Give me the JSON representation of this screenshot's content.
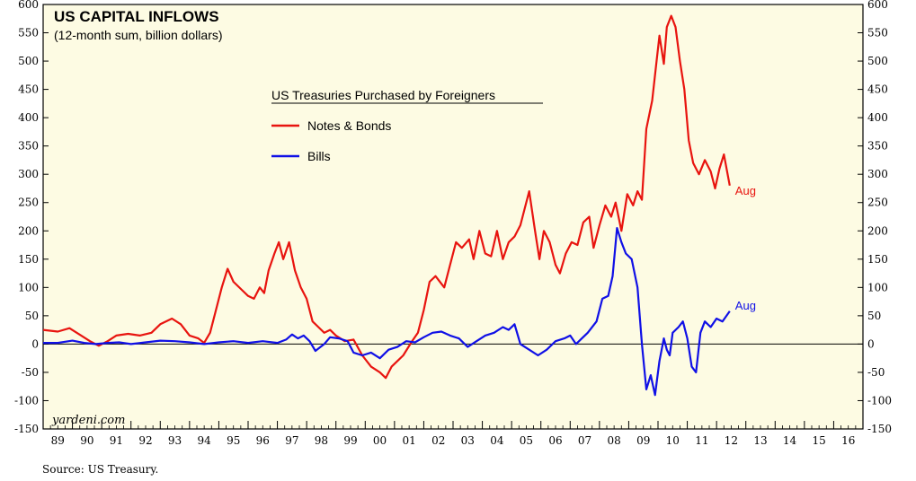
{
  "chart_data": {
    "type": "line",
    "title": "US CAPITAL INFLOWS",
    "subtitle": "(12-month sum, billion dollars)",
    "legend_title": "US Treasuries Purchased by Foreigners",
    "source": "Source: US Treasury.",
    "brand": "yardeni.com",
    "ylim": [
      -150,
      600
    ],
    "yticks": [
      -150,
      -100,
      -50,
      0,
      50,
      100,
      150,
      200,
      250,
      300,
      350,
      400,
      450,
      500,
      550,
      600
    ],
    "xlim": [
      1989,
      2017
    ],
    "x_tick_labels": [
      "89",
      "90",
      "91",
      "92",
      "93",
      "94",
      "95",
      "96",
      "97",
      "98",
      "99",
      "00",
      "01",
      "02",
      "03",
      "04",
      "05",
      "06",
      "07",
      "08",
      "09",
      "10",
      "11",
      "12",
      "13",
      "14",
      "15",
      "16"
    ],
    "grid": false,
    "legend_position": "top-center",
    "series": [
      {
        "name": "Notes & Bonds",
        "color": "#e8140f",
        "end_label": "Aug",
        "points": [
          [
            1989.0,
            25
          ],
          [
            1989.5,
            22
          ],
          [
            1989.9,
            28
          ],
          [
            1990.3,
            15
          ],
          [
            1990.6,
            5
          ],
          [
            1990.9,
            -3
          ],
          [
            1991.2,
            5
          ],
          [
            1991.5,
            15
          ],
          [
            1991.9,
            18
          ],
          [
            1992.3,
            15
          ],
          [
            1992.7,
            20
          ],
          [
            1993.0,
            35
          ],
          [
            1993.4,
            45
          ],
          [
            1993.7,
            35
          ],
          [
            1994.0,
            15
          ],
          [
            1994.3,
            10
          ],
          [
            1994.5,
            2
          ],
          [
            1994.7,
            20
          ],
          [
            1994.9,
            60
          ],
          [
            1995.1,
            100
          ],
          [
            1995.3,
            133
          ],
          [
            1995.5,
            110
          ],
          [
            1995.8,
            95
          ],
          [
            1996.0,
            85
          ],
          [
            1996.2,
            80
          ],
          [
            1996.4,
            100
          ],
          [
            1996.55,
            90
          ],
          [
            1996.7,
            130
          ],
          [
            1996.9,
            160
          ],
          [
            1997.05,
            180
          ],
          [
            1997.2,
            150
          ],
          [
            1997.4,
            180
          ],
          [
            1997.6,
            130
          ],
          [
            1997.8,
            100
          ],
          [
            1998.0,
            80
          ],
          [
            1998.2,
            40
          ],
          [
            1998.4,
            30
          ],
          [
            1998.6,
            20
          ],
          [
            1998.8,
            25
          ],
          [
            1999.0,
            15
          ],
          [
            1999.3,
            5
          ],
          [
            1999.6,
            8
          ],
          [
            1999.9,
            -20
          ],
          [
            2000.2,
            -40
          ],
          [
            2000.5,
            -50
          ],
          [
            2000.7,
            -60
          ],
          [
            2000.9,
            -40
          ],
          [
            2001.1,
            -30
          ],
          [
            2001.3,
            -20
          ],
          [
            2001.6,
            5
          ],
          [
            2001.8,
            20
          ],
          [
            2002.0,
            60
          ],
          [
            2002.2,
            110
          ],
          [
            2002.4,
            120
          ],
          [
            2002.7,
            100
          ],
          [
            2002.9,
            140
          ],
          [
            2003.1,
            180
          ],
          [
            2003.3,
            170
          ],
          [
            2003.55,
            185
          ],
          [
            2003.7,
            150
          ],
          [
            2003.9,
            200
          ],
          [
            2004.1,
            160
          ],
          [
            2004.3,
            155
          ],
          [
            2004.5,
            200
          ],
          [
            2004.7,
            150
          ],
          [
            2004.9,
            180
          ],
          [
            2005.1,
            190
          ],
          [
            2005.3,
            210
          ],
          [
            2005.45,
            240
          ],
          [
            2005.6,
            270
          ],
          [
            2005.8,
            200
          ],
          [
            2005.95,
            150
          ],
          [
            2006.1,
            200
          ],
          [
            2006.3,
            180
          ],
          [
            2006.5,
            140
          ],
          [
            2006.65,
            125
          ],
          [
            2006.85,
            160
          ],
          [
            2007.05,
            180
          ],
          [
            2007.25,
            175
          ],
          [
            2007.45,
            215
          ],
          [
            2007.65,
            225
          ],
          [
            2007.8,
            170
          ],
          [
            2008.0,
            210
          ],
          [
            2008.2,
            245
          ],
          [
            2008.4,
            225
          ],
          [
            2008.55,
            250
          ],
          [
            2008.75,
            200
          ],
          [
            2008.95,
            265
          ],
          [
            2009.15,
            245
          ],
          [
            2009.3,
            270
          ],
          [
            2009.45,
            255
          ],
          [
            2009.6,
            380
          ],
          [
            2009.8,
            430
          ],
          [
            2009.95,
            500
          ],
          [
            2010.05,
            545
          ],
          [
            2010.2,
            495
          ],
          [
            2010.3,
            560
          ],
          [
            2010.45,
            580
          ],
          [
            2010.6,
            560
          ],
          [
            2010.75,
            500
          ],
          [
            2010.9,
            450
          ],
          [
            2011.05,
            360
          ],
          [
            2011.2,
            320
          ],
          [
            2011.4,
            300
          ],
          [
            2011.6,
            325
          ],
          [
            2011.8,
            305
          ],
          [
            2011.95,
            275
          ],
          [
            2012.1,
            310
          ],
          [
            2012.25,
            335
          ],
          [
            2012.45,
            280
          ]
        ]
      },
      {
        "name": "Bills",
        "color": "#1010e6",
        "end_label": "Aug",
        "points": [
          [
            1989.0,
            2
          ],
          [
            1989.5,
            2
          ],
          [
            1990.0,
            6
          ],
          [
            1990.4,
            2
          ],
          [
            1990.8,
            0
          ],
          [
            1991.2,
            2
          ],
          [
            1991.6,
            3
          ],
          [
            1992.0,
            0
          ],
          [
            1992.5,
            3
          ],
          [
            1993.0,
            6
          ],
          [
            1993.5,
            5
          ],
          [
            1994.0,
            3
          ],
          [
            1994.5,
            0
          ],
          [
            1995.0,
            3
          ],
          [
            1995.5,
            5
          ],
          [
            1996.0,
            2
          ],
          [
            1996.5,
            5
          ],
          [
            1997.0,
            2
          ],
          [
            1997.3,
            8
          ],
          [
            1997.5,
            17
          ],
          [
            1997.7,
            10
          ],
          [
            1997.9,
            15
          ],
          [
            1998.1,
            5
          ],
          [
            1998.3,
            -12
          ],
          [
            1998.6,
            0
          ],
          [
            1998.8,
            12
          ],
          [
            1999.1,
            10
          ],
          [
            1999.4,
            5
          ],
          [
            1999.6,
            -15
          ],
          [
            1999.9,
            -20
          ],
          [
            2000.2,
            -15
          ],
          [
            2000.5,
            -25
          ],
          [
            2000.8,
            -10
          ],
          [
            2001.1,
            -5
          ],
          [
            2001.4,
            5
          ],
          [
            2001.7,
            3
          ],
          [
            2002.0,
            12
          ],
          [
            2002.3,
            20
          ],
          [
            2002.6,
            22
          ],
          [
            2002.9,
            15
          ],
          [
            2003.2,
            10
          ],
          [
            2003.5,
            -5
          ],
          [
            2003.8,
            5
          ],
          [
            2004.1,
            15
          ],
          [
            2004.4,
            20
          ],
          [
            2004.7,
            30
          ],
          [
            2004.9,
            25
          ],
          [
            2005.1,
            35
          ],
          [
            2005.3,
            0
          ],
          [
            2005.6,
            -10
          ],
          [
            2005.9,
            -20
          ],
          [
            2006.2,
            -10
          ],
          [
            2006.5,
            5
          ],
          [
            2006.8,
            10
          ],
          [
            2007.0,
            15
          ],
          [
            2007.2,
            0
          ],
          [
            2007.4,
            10
          ],
          [
            2007.6,
            20
          ],
          [
            2007.9,
            40
          ],
          [
            2008.1,
            80
          ],
          [
            2008.3,
            85
          ],
          [
            2008.45,
            120
          ],
          [
            2008.6,
            205
          ],
          [
            2008.75,
            180
          ],
          [
            2008.9,
            160
          ],
          [
            2009.1,
            150
          ],
          [
            2009.3,
            100
          ],
          [
            2009.45,
            0
          ],
          [
            2009.6,
            -80
          ],
          [
            2009.75,
            -55
          ],
          [
            2009.9,
            -90
          ],
          [
            2010.05,
            -30
          ],
          [
            2010.2,
            10
          ],
          [
            2010.3,
            -10
          ],
          [
            2010.4,
            -20
          ],
          [
            2010.5,
            20
          ],
          [
            2010.7,
            30
          ],
          [
            2010.85,
            40
          ],
          [
            2011.0,
            10
          ],
          [
            2011.15,
            -40
          ],
          [
            2011.3,
            -50
          ],
          [
            2011.45,
            20
          ],
          [
            2011.6,
            40
          ],
          [
            2011.8,
            30
          ],
          [
            2012.0,
            45
          ],
          [
            2012.2,
            40
          ],
          [
            2012.45,
            58
          ]
        ]
      }
    ]
  }
}
